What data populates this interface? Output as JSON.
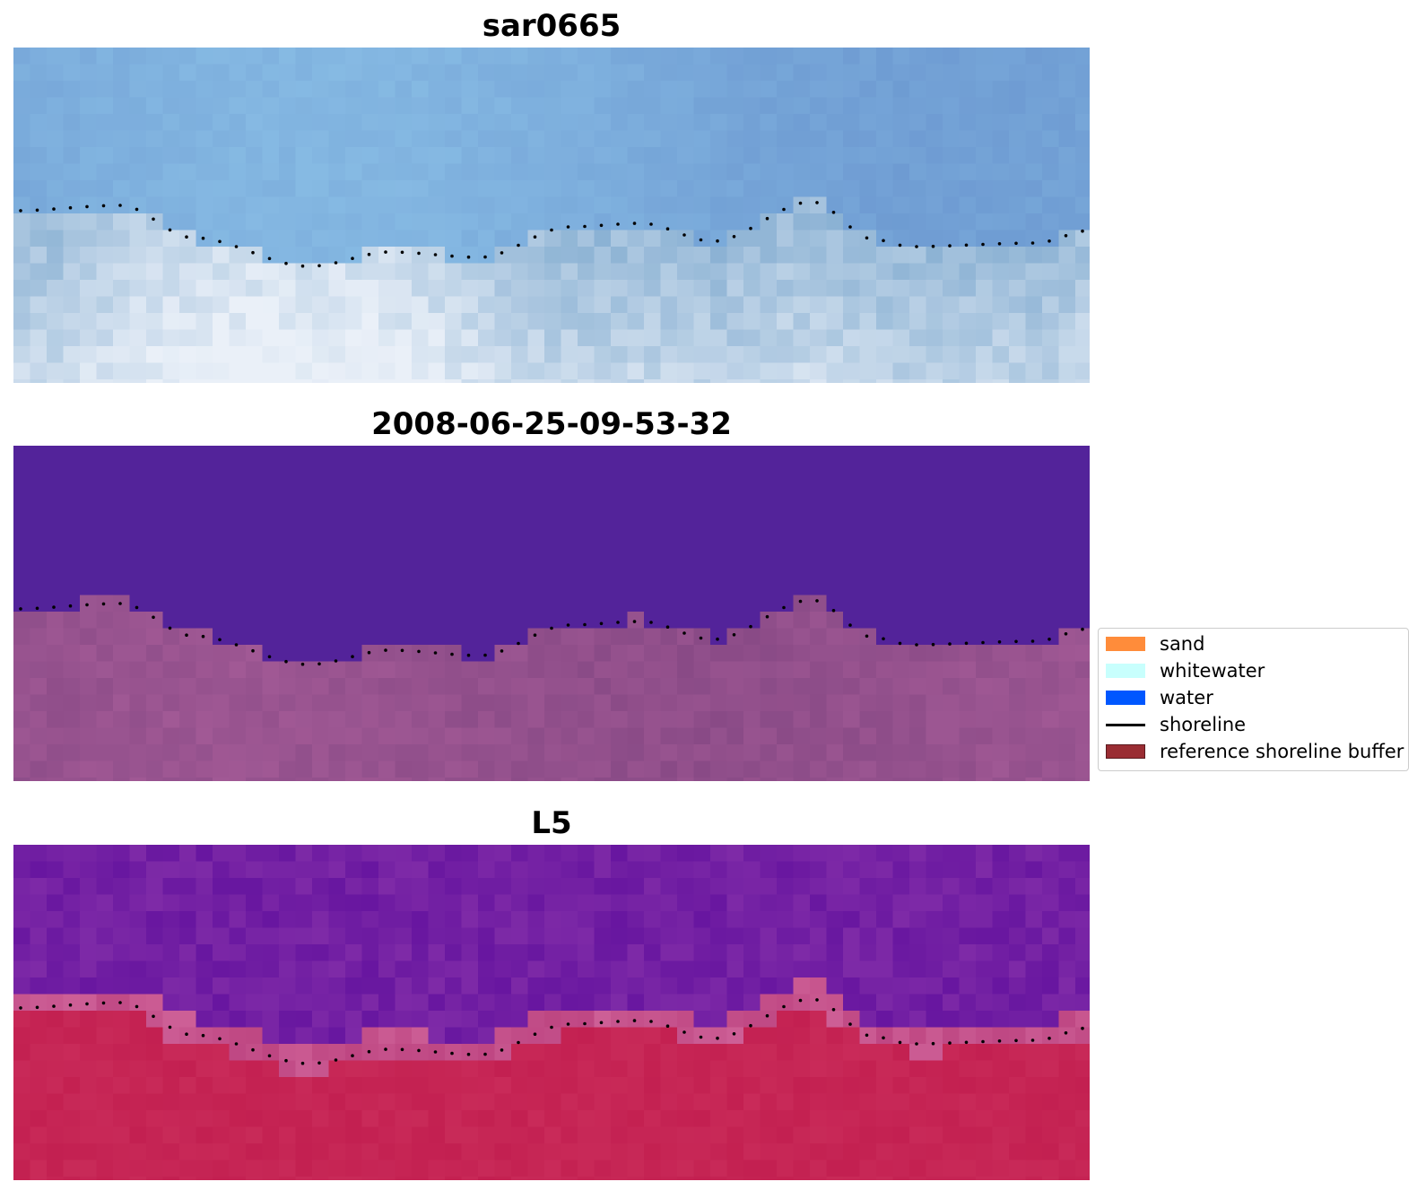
{
  "panels": [
    {
      "title": "sar0665",
      "image": "sar-backscatter"
    },
    {
      "title": "2008-06-25-09-53-32",
      "image": "classification-overlay"
    },
    {
      "title": "L5",
      "image": "landsat-index"
    }
  ],
  "legend": {
    "items": [
      {
        "label": "sand",
        "color": "#ff8c3a",
        "kind": "patch"
      },
      {
        "label": "whitewater",
        "color": "#c8fffd",
        "kind": "patch"
      },
      {
        "label": "water",
        "color": "#0057ff",
        "kind": "patch"
      },
      {
        "label": "shoreline",
        "color": "#000000",
        "kind": "line"
      },
      {
        "label": "reference shoreline buffer",
        "color": "#9a2d33",
        "kind": "patch"
      }
    ]
  },
  "colors": {
    "panel1_water": "#78aad8",
    "panel1_bright": "#eaf0f8",
    "panel2_water": "#53239a",
    "panel2_land": "#a35a96",
    "panel3_water": "#611798",
    "panel3_land": "#c21e4f"
  }
}
